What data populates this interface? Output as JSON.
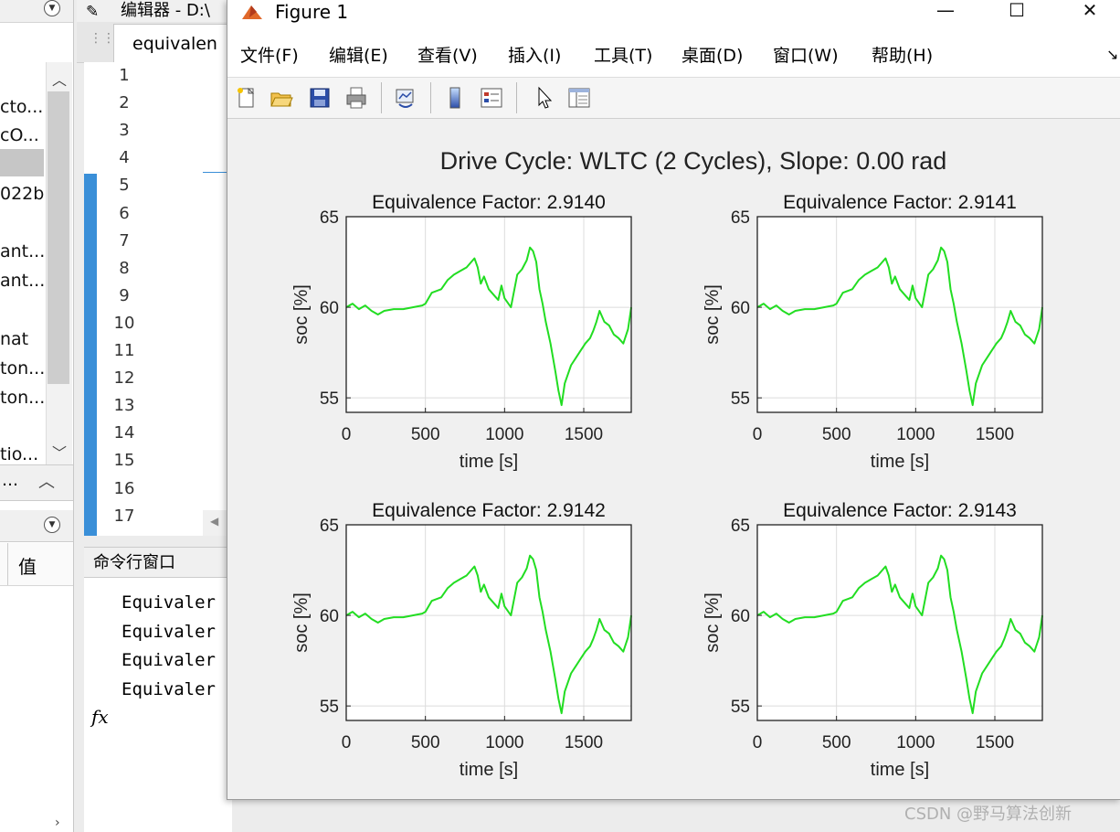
{
  "left_pane": {
    "files": [
      "cto...",
      "cO...",
      "",
      "022b",
      "ant....",
      "ant....",
      "nat",
      "ton...",
      "ton...",
      "tio..."
    ],
    "workspace_col_value": "值"
  },
  "editor": {
    "title": "编辑器 - D:\\",
    "tab_label": "equivalen",
    "line_numbers": [
      "1",
      "2",
      "3",
      "4",
      "5",
      "6",
      "7",
      "8",
      "9",
      "10",
      "11",
      "12",
      "13",
      "14",
      "15",
      "16",
      "17"
    ]
  },
  "command_window": {
    "header": "命令行窗口",
    "lines": [
      "Equivaler",
      "Equivaler",
      "Equivaler",
      "Equivaler"
    ],
    "fx_label": "fx"
  },
  "figure": {
    "title": "Figure 1",
    "controls": {
      "minimize": "—",
      "maximize": "☐",
      "close": "✕"
    },
    "menu": [
      "文件(F)",
      "编辑(E)",
      "查看(V)",
      "插入(I)",
      "工具(T)",
      "桌面(D)",
      "窗口(W)",
      "帮助(H)"
    ],
    "toolbar_icons": [
      "new-figure-icon",
      "open-file-icon",
      "save-icon",
      "print-icon",
      "link-plot-icon",
      "colorbar-icon",
      "legend-icon",
      "pointer-icon",
      "property-editor-icon"
    ],
    "suptitle": "Drive Cycle: WLTC (2 Cycles), Slope: 0.00 rad",
    "line_color": "#22dd22"
  },
  "chart_data": [
    {
      "type": "line",
      "title": "Equivalence Factor: 2.9140",
      "xlabel": "time [s]",
      "ylabel": "soc [%]",
      "xlim": [
        0,
        1800
      ],
      "ylim": [
        54.2,
        65
      ],
      "xticks": [
        0,
        500,
        1000,
        1500
      ],
      "yticks": [
        55,
        60,
        65
      ],
      "grid": true,
      "x": [
        0,
        40,
        80,
        120,
        160,
        200,
        240,
        300,
        360,
        420,
        480,
        500,
        540,
        600,
        640,
        680,
        720,
        760,
        790,
        810,
        830,
        850,
        870,
        900,
        940,
        960,
        980,
        1000,
        1040,
        1080,
        1110,
        1140,
        1160,
        1180,
        1200,
        1220,
        1240,
        1260,
        1290,
        1320,
        1340,
        1360,
        1380,
        1420,
        1450,
        1480,
        1510,
        1540,
        1560,
        1580,
        1600,
        1630,
        1660,
        1690,
        1720,
        1750,
        1780,
        1800
      ],
      "y": [
        60.0,
        60.2,
        59.9,
        60.1,
        59.8,
        59.6,
        59.8,
        59.9,
        59.9,
        60.0,
        60.1,
        60.2,
        60.8,
        61.0,
        61.5,
        61.8,
        62.0,
        62.2,
        62.5,
        62.7,
        62.2,
        61.3,
        61.7,
        61.0,
        60.6,
        60.4,
        61.2,
        60.5,
        60.0,
        61.8,
        62.1,
        62.6,
        63.3,
        63.1,
        62.5,
        61.0,
        60.2,
        59.2,
        58.0,
        56.5,
        55.4,
        54.6,
        55.8,
        56.8,
        57.2,
        57.6,
        58.0,
        58.3,
        58.7,
        59.2,
        59.8,
        59.2,
        59.0,
        58.5,
        58.3,
        58.0,
        58.8,
        60.0
      ]
    },
    {
      "type": "line",
      "title": "Equivalence Factor: 2.9141",
      "xlabel": "time [s]",
      "ylabel": "soc [%]",
      "xlim": [
        0,
        1800
      ],
      "ylim": [
        54.2,
        65
      ],
      "xticks": [
        0,
        500,
        1000,
        1500
      ],
      "yticks": [
        55,
        60,
        65
      ],
      "grid": true,
      "x": [
        0,
        40,
        80,
        120,
        160,
        200,
        240,
        300,
        360,
        420,
        480,
        500,
        540,
        600,
        640,
        680,
        720,
        760,
        790,
        810,
        830,
        850,
        870,
        900,
        940,
        960,
        980,
        1000,
        1040,
        1080,
        1110,
        1140,
        1160,
        1180,
        1200,
        1220,
        1240,
        1260,
        1290,
        1320,
        1340,
        1360,
        1380,
        1420,
        1450,
        1480,
        1510,
        1540,
        1560,
        1580,
        1600,
        1630,
        1660,
        1690,
        1720,
        1750,
        1780,
        1800
      ],
      "y": [
        60.0,
        60.2,
        59.9,
        60.1,
        59.8,
        59.6,
        59.8,
        59.9,
        59.9,
        60.0,
        60.1,
        60.2,
        60.8,
        61.0,
        61.5,
        61.8,
        62.0,
        62.2,
        62.5,
        62.7,
        62.2,
        61.3,
        61.7,
        61.0,
        60.6,
        60.4,
        61.2,
        60.5,
        60.0,
        61.8,
        62.1,
        62.6,
        63.3,
        63.1,
        62.5,
        61.0,
        60.2,
        59.2,
        58.0,
        56.5,
        55.4,
        54.6,
        55.8,
        56.8,
        57.2,
        57.6,
        58.0,
        58.3,
        58.7,
        59.2,
        59.8,
        59.2,
        59.0,
        58.5,
        58.3,
        58.0,
        58.8,
        60.0
      ]
    },
    {
      "type": "line",
      "title": "Equivalence Factor: 2.9142",
      "xlabel": "time [s]",
      "ylabel": "soc [%]",
      "xlim": [
        0,
        1800
      ],
      "ylim": [
        54.2,
        65
      ],
      "xticks": [
        0,
        500,
        1000,
        1500
      ],
      "yticks": [
        55,
        60,
        65
      ],
      "grid": true,
      "x": [
        0,
        40,
        80,
        120,
        160,
        200,
        240,
        300,
        360,
        420,
        480,
        500,
        540,
        600,
        640,
        680,
        720,
        760,
        790,
        810,
        830,
        850,
        870,
        900,
        940,
        960,
        980,
        1000,
        1040,
        1080,
        1110,
        1140,
        1160,
        1180,
        1200,
        1220,
        1240,
        1260,
        1290,
        1320,
        1340,
        1360,
        1380,
        1420,
        1450,
        1480,
        1510,
        1540,
        1560,
        1580,
        1600,
        1630,
        1660,
        1690,
        1720,
        1750,
        1780,
        1800
      ],
      "y": [
        60.0,
        60.2,
        59.9,
        60.1,
        59.8,
        59.6,
        59.8,
        59.9,
        59.9,
        60.0,
        60.1,
        60.2,
        60.8,
        61.0,
        61.5,
        61.8,
        62.0,
        62.2,
        62.5,
        62.7,
        62.2,
        61.3,
        61.7,
        61.0,
        60.6,
        60.4,
        61.2,
        60.5,
        60.0,
        61.8,
        62.1,
        62.6,
        63.3,
        63.1,
        62.5,
        61.0,
        60.2,
        59.2,
        58.0,
        56.5,
        55.4,
        54.6,
        55.8,
        56.8,
        57.2,
        57.6,
        58.0,
        58.3,
        58.7,
        59.2,
        59.8,
        59.2,
        59.0,
        58.5,
        58.3,
        58.0,
        58.8,
        60.0
      ]
    },
    {
      "type": "line",
      "title": "Equivalence Factor: 2.9143",
      "xlabel": "time [s]",
      "ylabel": "soc [%]",
      "xlim": [
        0,
        1800
      ],
      "ylim": [
        54.2,
        65
      ],
      "xticks": [
        0,
        500,
        1000,
        1500
      ],
      "yticks": [
        55,
        60,
        65
      ],
      "grid": true,
      "x": [
        0,
        40,
        80,
        120,
        160,
        200,
        240,
        300,
        360,
        420,
        480,
        500,
        540,
        600,
        640,
        680,
        720,
        760,
        790,
        810,
        830,
        850,
        870,
        900,
        940,
        960,
        980,
        1000,
        1040,
        1080,
        1110,
        1140,
        1160,
        1180,
        1200,
        1220,
        1240,
        1260,
        1290,
        1320,
        1340,
        1360,
        1380,
        1420,
        1450,
        1480,
        1510,
        1540,
        1560,
        1580,
        1600,
        1630,
        1660,
        1690,
        1720,
        1750,
        1780,
        1800
      ],
      "y": [
        60.0,
        60.2,
        59.9,
        60.1,
        59.8,
        59.6,
        59.8,
        59.9,
        59.9,
        60.0,
        60.1,
        60.2,
        60.8,
        61.0,
        61.5,
        61.8,
        62.0,
        62.2,
        62.5,
        62.7,
        62.2,
        61.3,
        61.7,
        61.0,
        60.6,
        60.4,
        61.2,
        60.5,
        60.0,
        61.8,
        62.1,
        62.6,
        63.3,
        63.1,
        62.5,
        61.0,
        60.2,
        59.2,
        58.0,
        56.5,
        55.4,
        54.6,
        55.8,
        56.8,
        57.2,
        57.6,
        58.0,
        58.3,
        58.7,
        59.2,
        59.8,
        59.2,
        59.0,
        58.5,
        58.3,
        58.0,
        58.8,
        60.0
      ]
    }
  ],
  "watermark": "CSDN @野马算法创新"
}
